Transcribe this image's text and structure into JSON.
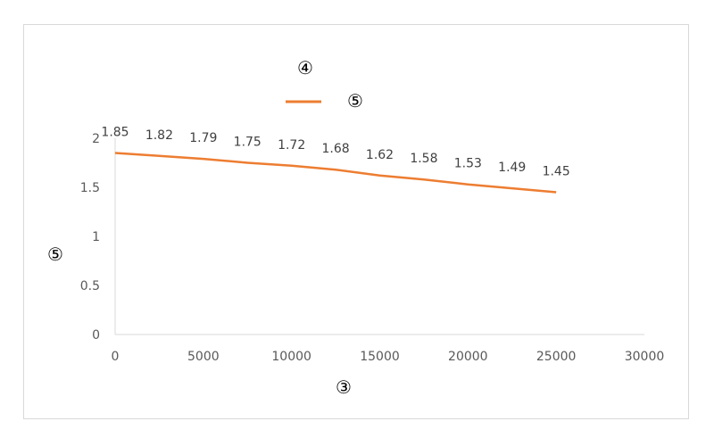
{
  "chart_data": {
    "type": "line",
    "title": "④",
    "xlabel": "③",
    "ylabel": "⑤",
    "x": [
      0,
      2500,
      5000,
      7500,
      10000,
      12500,
      15000,
      17500,
      20000,
      22500,
      25000
    ],
    "series": [
      {
        "name": "⑤",
        "color": "#ED7D31",
        "values": [
          1.85,
          1.82,
          1.79,
          1.75,
          1.72,
          1.68,
          1.62,
          1.58,
          1.53,
          1.49,
          1.45
        ],
        "data_labels": [
          "1.85",
          "1.82",
          "1.79",
          "1.75",
          "1.72",
          "1.68",
          "1.62",
          "1.58",
          "1.53",
          "1.49",
          "1.45"
        ]
      }
    ],
    "xlim": [
      0,
      30000
    ],
    "ylim": [
      0,
      2
    ],
    "xticks": [
      "0",
      "5000",
      "10000",
      "15000",
      "20000",
      "25000",
      "30000"
    ],
    "yticks": [
      "0",
      "0.5",
      "1",
      "1.5",
      "2"
    ],
    "grid": false,
    "legend_position": "top",
    "axis_color": "#d9d9d9"
  }
}
